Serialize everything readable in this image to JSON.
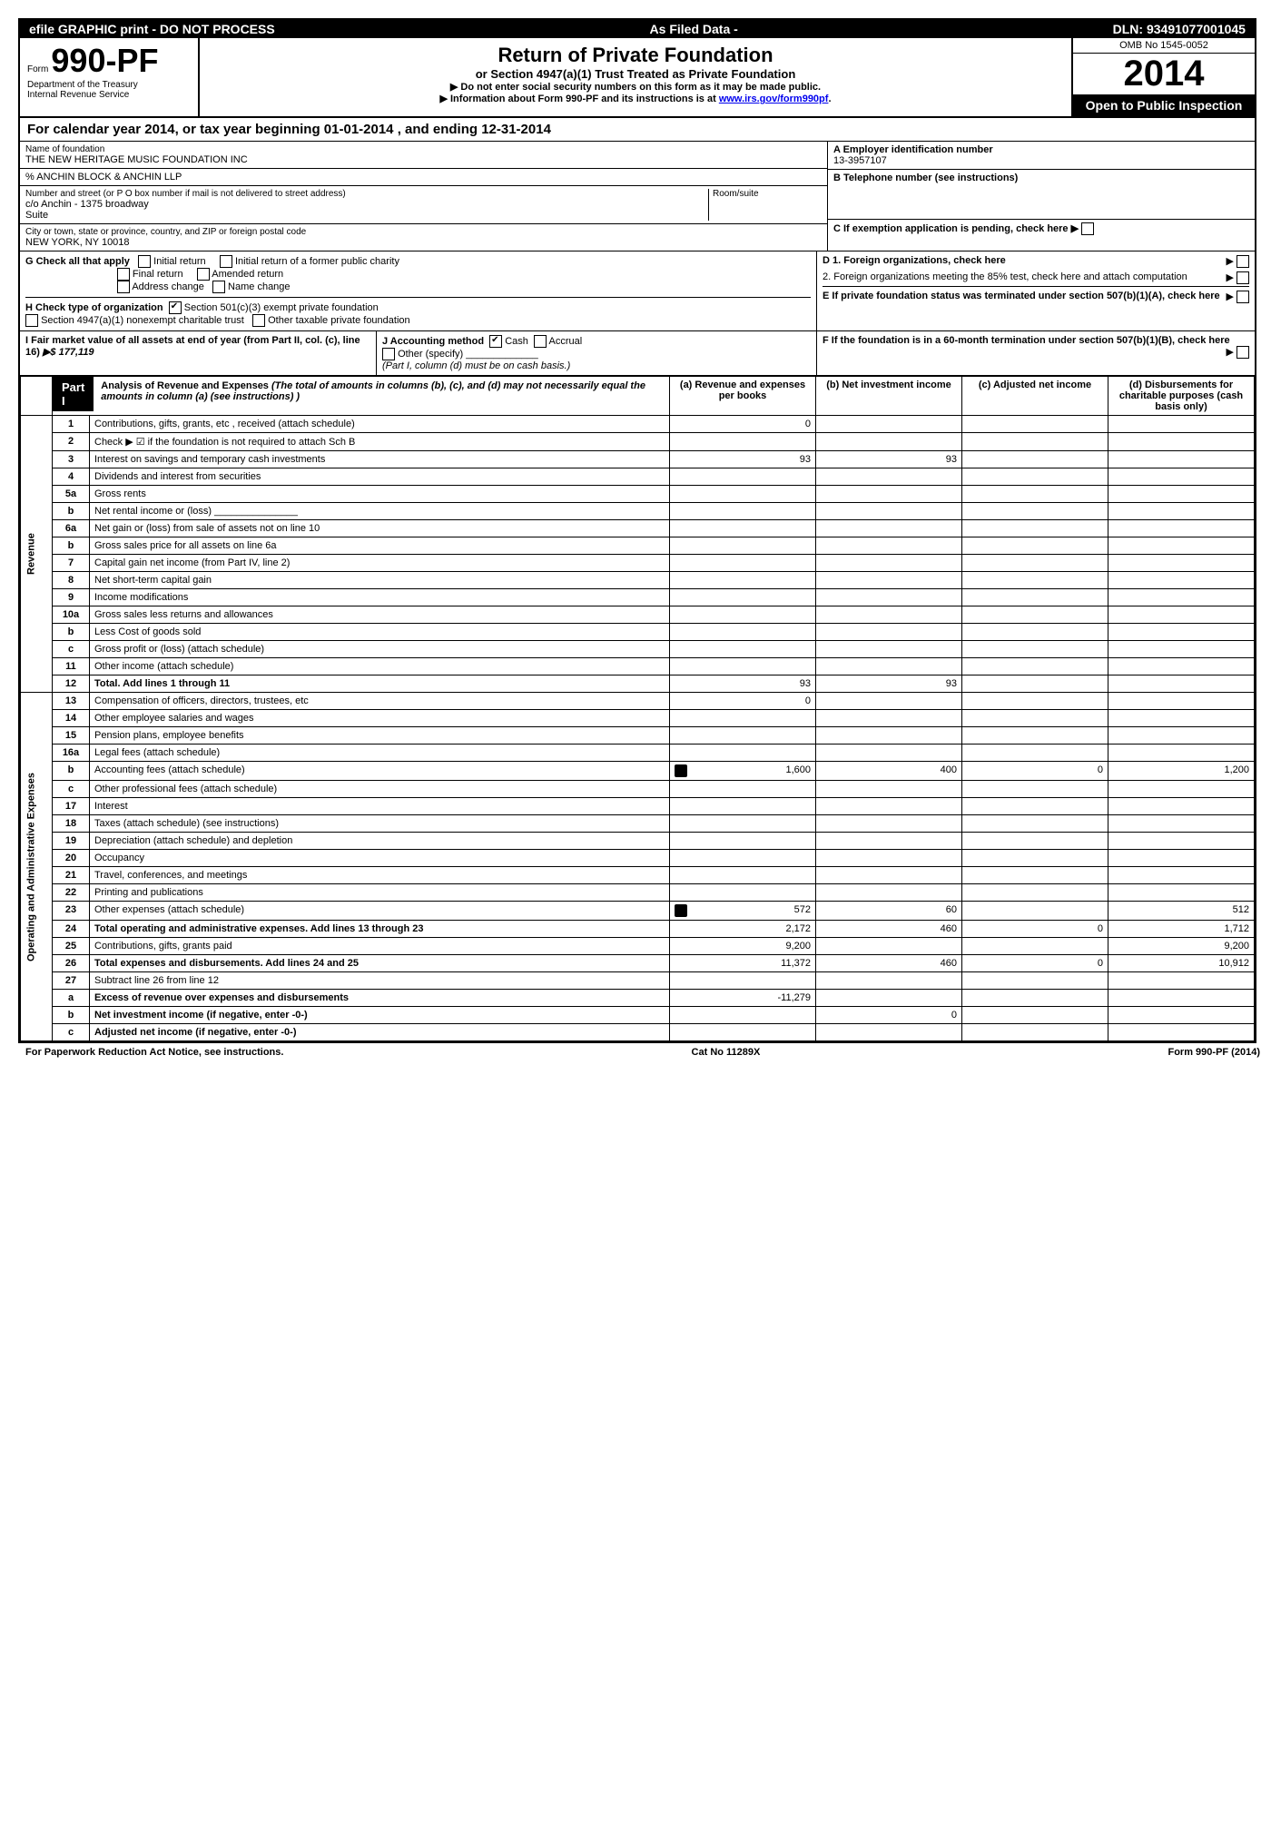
{
  "top_bar": {
    "efile": "efile GRAPHIC print - DO NOT PROCESS",
    "asfiled": "As Filed Data -",
    "dln": "DLN: 93491077001045"
  },
  "header": {
    "form_prefix": "Form",
    "form_number": "990-PF",
    "dept": "Department of the Treasury",
    "irs": "Internal Revenue Service",
    "title": "Return of Private Foundation",
    "subtitle": "or Section 4947(a)(1) Trust Treated as Private Foundation",
    "note1": "▶ Do not enter social security numbers on this form as it may be made public.",
    "note2_prefix": "▶ Information about Form 990-PF and its instructions is at ",
    "note2_link": "www.irs.gov/form990pf",
    "omb": "OMB No 1545-0052",
    "year": "2014",
    "open": "Open to Public Inspection"
  },
  "calendar": "For calendar year 2014, or tax year beginning 01-01-2014            , and ending 12-31-2014",
  "foundation": {
    "name_label": "Name of foundation",
    "name": "THE NEW HERITAGE MUSIC FOUNDATION INC",
    "care_of": "% ANCHIN BLOCK & ANCHIN LLP",
    "addr_label": "Number and street (or P O box number if mail is not delivered to street address)",
    "addr": "c/o Anchin - 1375 broadway",
    "suite_label": "Suite",
    "room_label": "Room/suite",
    "city_label": "City or town, state or province, country, and ZIP or foreign postal code",
    "city": "NEW YORK, NY 10018"
  },
  "right_info": {
    "a_label": "A Employer identification number",
    "a_value": "13-3957107",
    "b_label": "B Telephone number (see instructions)",
    "c_label": "C If exemption application is pending, check here"
  },
  "g": {
    "label": "G Check all that apply",
    "opts": [
      "Initial return",
      "Initial return of a former public charity",
      "Final return",
      "Amended return",
      "Address change",
      "Name change"
    ]
  },
  "h": {
    "label": "H Check type of organization",
    "opt1": "Section 501(c)(3) exempt private foundation",
    "opt2": "Section 4947(a)(1) nonexempt charitable trust",
    "opt3": "Other taxable private foundation"
  },
  "i": {
    "label": "I Fair market value of all assets at end of year (from Part II, col. (c), line 16)",
    "value": "▶$ 177,119"
  },
  "j": {
    "label": "J Accounting method",
    "cash": "Cash",
    "accrual": "Accrual",
    "other": "Other (specify)",
    "note": "(Part I, column (d) must be on cash basis.)"
  },
  "d": {
    "d1": "D 1. Foreign organizations, check here",
    "d2": "2. Foreign organizations meeting the 85% test, check here and attach computation"
  },
  "e": "E If private foundation status was terminated under section 507(b)(1)(A), check here",
  "f": "F If the foundation is in a 60-month termination under section 507(b)(1)(B), check here",
  "part1": {
    "label": "Part I",
    "title": "Analysis of Revenue and Expenses",
    "desc": "(The total of amounts in columns (b), (c), and (d) may not necessarily equal the amounts in column (a) (see instructions) )",
    "col_a": "(a) Revenue and expenses per books",
    "col_b": "(b) Net investment income",
    "col_c": "(c) Adjusted net income",
    "col_d": "(d) Disbursements for charitable purposes (cash basis only)"
  },
  "sections": {
    "revenue": "Revenue",
    "expenses": "Operating and Administrative Expenses"
  },
  "rows": [
    {
      "n": "1",
      "d": "Contributions, gifts, grants, etc , received (attach schedule)",
      "a": "0"
    },
    {
      "n": "2",
      "d": "Check ▶ ☑ if the foundation is not required to attach Sch B"
    },
    {
      "n": "3",
      "d": "Interest on savings and temporary cash investments",
      "a": "93",
      "b": "93"
    },
    {
      "n": "4",
      "d": "Dividends and interest from securities"
    },
    {
      "n": "5a",
      "d": "Gross rents"
    },
    {
      "n": "b",
      "d": "Net rental income or (loss) _______________"
    },
    {
      "n": "6a",
      "d": "Net gain or (loss) from sale of assets not on line 10"
    },
    {
      "n": "b",
      "d": "Gross sales price for all assets on line 6a"
    },
    {
      "n": "7",
      "d": "Capital gain net income (from Part IV, line 2)"
    },
    {
      "n": "8",
      "d": "Net short-term capital gain"
    },
    {
      "n": "9",
      "d": "Income modifications"
    },
    {
      "n": "10a",
      "d": "Gross sales less returns and allowances"
    },
    {
      "n": "b",
      "d": "Less Cost of goods sold"
    },
    {
      "n": "c",
      "d": "Gross profit or (loss) (attach schedule)"
    },
    {
      "n": "11",
      "d": "Other income (attach schedule)"
    },
    {
      "n": "12",
      "d": "Total. Add lines 1 through 11",
      "a": "93",
      "b": "93",
      "bold": true
    },
    {
      "n": "13",
      "d": "Compensation of officers, directors, trustees, etc",
      "a": "0"
    },
    {
      "n": "14",
      "d": "Other employee salaries and wages"
    },
    {
      "n": "15",
      "d": "Pension plans, employee benefits"
    },
    {
      "n": "16a",
      "d": "Legal fees (attach schedule)"
    },
    {
      "n": "b",
      "d": "Accounting fees (attach schedule)",
      "a": "1,600",
      "b": "400",
      "c": "0",
      "dd": "1,200",
      "icon": true
    },
    {
      "n": "c",
      "d": "Other professional fees (attach schedule)"
    },
    {
      "n": "17",
      "d": "Interest"
    },
    {
      "n": "18",
      "d": "Taxes (attach schedule) (see instructions)"
    },
    {
      "n": "19",
      "d": "Depreciation (attach schedule) and depletion"
    },
    {
      "n": "20",
      "d": "Occupancy"
    },
    {
      "n": "21",
      "d": "Travel, conferences, and meetings"
    },
    {
      "n": "22",
      "d": "Printing and publications"
    },
    {
      "n": "23",
      "d": "Other expenses (attach schedule)",
      "a": "572",
      "b": "60",
      "dd": "512",
      "icon": true
    },
    {
      "n": "24",
      "d": "Total operating and administrative expenses. Add lines 13 through 23",
      "a": "2,172",
      "b": "460",
      "c": "0",
      "dd": "1,712",
      "bold": true
    },
    {
      "n": "25",
      "d": "Contributions, gifts, grants paid",
      "a": "9,200",
      "dd": "9,200"
    },
    {
      "n": "26",
      "d": "Total expenses and disbursements. Add lines 24 and 25",
      "a": "11,372",
      "b": "460",
      "c": "0",
      "dd": "10,912",
      "bold": true
    },
    {
      "n": "27",
      "d": "Subtract line 26 from line 12"
    },
    {
      "n": "a",
      "d": "Excess of revenue over expenses and disbursements",
      "a": "-11,279",
      "bold": true
    },
    {
      "n": "b",
      "d": "Net investment income (if negative, enter -0-)",
      "b": "0",
      "bold": true
    },
    {
      "n": "c",
      "d": "Adjusted net income (if negative, enter -0-)",
      "bold": true
    }
  ],
  "footer": {
    "left": "For Paperwork Reduction Act Notice, see instructions.",
    "mid": "Cat No 11289X",
    "right": "Form 990-PF (2014)"
  }
}
